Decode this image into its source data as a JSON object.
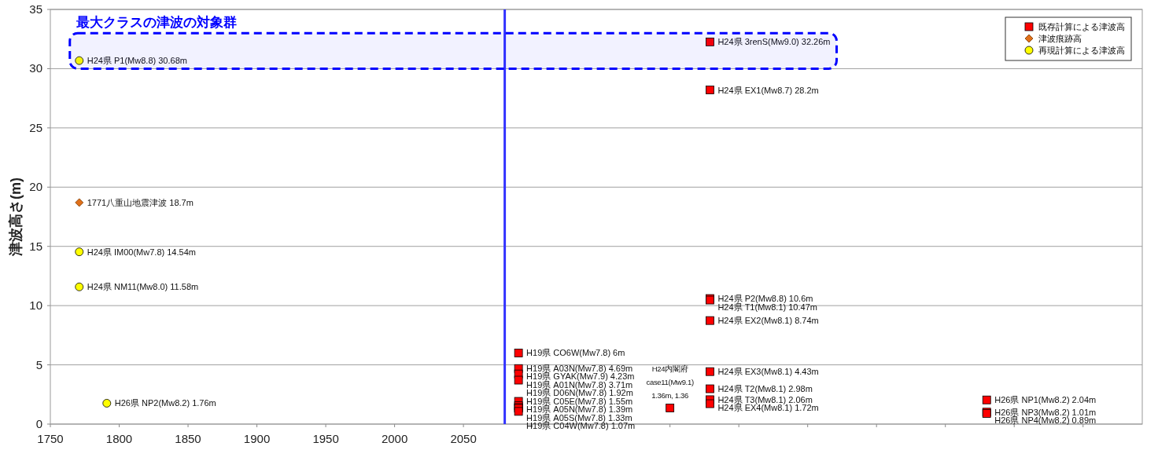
{
  "chart_data": {
    "type": "scatter",
    "ylabel": "津波高さ(m)",
    "xlim": [
      1750,
      2543
    ],
    "ylim": [
      0,
      35
    ],
    "xticks": [
      1750,
      1800,
      1850,
      1900,
      1950,
      2000,
      2050,
      {
        "value": 2100,
        "label": null
      },
      {
        "value": 2150,
        "label": null
      },
      {
        "value": 2200,
        "label": null
      },
      {
        "value": 2250,
        "label": null
      },
      {
        "value": 2300,
        "label": null
      },
      {
        "value": 2350,
        "label": null
      },
      {
        "value": 2400,
        "label": null
      },
      {
        "value": 2450,
        "label": null
      },
      {
        "value": 2500,
        "label": null
      }
    ],
    "yticks": [
      0,
      5,
      10,
      15,
      20,
      25,
      30,
      35
    ],
    "grid": "y",
    "legend": "top right",
    "ref_lines": [
      {
        "axis": "x",
        "value": 2080,
        "color": "#3333ff"
      }
    ],
    "bands": [
      {
        "axis": "y",
        "from": 30,
        "to": 33,
        "label": "最大クラスの津波の対象群",
        "color": "#0000ff"
      }
    ],
    "series": [
      {
        "name": "既存計算による津波高",
        "type": "scatter",
        "marker": "square",
        "color": "#ff0000",
        "x": [
          2090,
          2090,
          2090,
          2090,
          2090,
          2090,
          2090,
          2090,
          2090,
          2200,
          2229,
          2229,
          2229,
          2229,
          2229,
          2229,
          2229,
          2229,
          2229,
          2430,
          2430,
          2430
        ],
        "values": [
          6,
          4.69,
          4.23,
          3.71,
          1.92,
          1.55,
          1.39,
          1.33,
          1.07,
          1.36,
          32.26,
          28.2,
          10.6,
          10.47,
          8.74,
          4.43,
          2.98,
          2.06,
          1.72,
          2.04,
          1.01,
          0.89
        ],
        "value_labels": [
          "H19県 CO6W(Mw7.8) 6m",
          "H19県 A03N(Mw7.8) 4.69m",
          "H19県 GYAK(Mw7.9) 4.23m",
          "H19県 A01N(Mw7.8) 3.71m",
          "H19県 D06N(Mw7.8) 1.92m",
          "H19県 C05E(Mw7.8) 1.55m",
          "H19県 A05N(Mw7.8) 1.39m",
          "H19県 A05S(Mw7.8) 1.33m",
          "H19県 C04W(Mw7.8) 1.07m",
          "H24内閣府\ncase11(Mw9.1)\n1.36m, 1.36",
          "H24県 3renS(Mw9.0) 32.26m",
          "H24県 EX1(Mw8.7) 28.2m",
          "H24県 P2(Mw8.8) 10.6m",
          "H24県 T1(Mw8.1) 10.47m",
          "H24県 EX2(Mw8.1) 8.74m",
          "H24県 EX3(Mw8.1) 4.43m",
          "H24県 T2(Mw8.1) 2.98m",
          "H24県 T3(Mw8.1) 2.06m",
          "H24県 EX4(Mw8.1) 1.72m",
          "H26県 NP1(Mw8.2) 2.04m",
          "H26県 NP3(Mw8.2) 1.01m",
          "H26県 NP4(Mw8.2) 0.89m"
        ]
      },
      {
        "name": "津波痕跡高",
        "type": "scatter",
        "marker": "diamond",
        "color": "#e0701a",
        "x": [
          1771
        ],
        "values": [
          18.7
        ],
        "value_labels": [
          "1771八重山地震津波 18.7m"
        ]
      },
      {
        "name": "再現計算による津波高",
        "type": "scatter",
        "marker": "circle",
        "color": "#ffff00",
        "x": [
          1771,
          1771,
          1771,
          1791
        ],
        "values": [
          30.68,
          14.54,
          11.58,
          1.76
        ],
        "value_labels": [
          "H24県 P1(Mw8.8) 30.68m",
          "H24県 IM00(Mw7.8) 14.54m",
          "H24県 NM11(Mw8.0) 11.58m",
          "H26県 NP2(Mw8.2) 1.76m"
        ]
      }
    ]
  }
}
